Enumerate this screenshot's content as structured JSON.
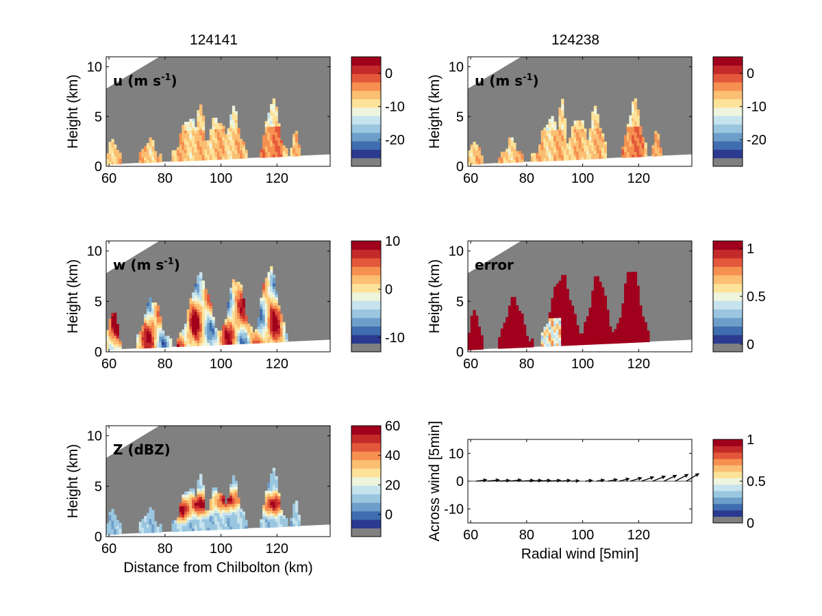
{
  "column_titles": [
    "124141",
    "124238"
  ],
  "labels": {
    "height": "Height (km)",
    "distance": "Distance from Chilbolton (km)",
    "radial": "Radial wind [5min]",
    "across": "Across wind [5min]"
  },
  "colorscale": [
    "#808080",
    "#2b3a8f",
    "#3f6db0",
    "#6d9ec9",
    "#9ac6df",
    "#c6e3ee",
    "#eef5dc",
    "#fde39a",
    "#fbbf73",
    "#f69051",
    "#e3573a",
    "#c42a2a",
    "#a0001c"
  ],
  "chart_data": [
    {
      "id": "u1",
      "type": "heatmap",
      "panel_label": "u (m s",
      "panel_label_sup": "-1",
      "panel_label_end": ")",
      "column": "124141",
      "xlim": [
        59,
        139
      ],
      "ylim": [
        0,
        11
      ],
      "xticks": [
        60,
        80,
        100,
        120
      ],
      "yticks": [
        0,
        5,
        10
      ],
      "ylabel": "Height (km)",
      "colorbar": {
        "ticks": [
          {
            "v": 0,
            "t": "0"
          },
          {
            "v": -10,
            "t": "-10"
          },
          {
            "v": -20,
            "t": "-20"
          }
        ],
        "range": [
          -28,
          5
        ]
      },
      "field": "u"
    },
    {
      "id": "u2",
      "type": "heatmap",
      "panel_label": "u (m s",
      "panel_label_sup": "-1",
      "panel_label_end": ")",
      "column": "124238",
      "xlim": [
        59,
        139
      ],
      "ylim": [
        0,
        11
      ],
      "xticks": [
        60,
        80,
        100,
        120
      ],
      "yticks": [
        0,
        5,
        10
      ],
      "ylabel": "Height (km)",
      "colorbar": {
        "ticks": [
          {
            "v": 0,
            "t": "0"
          },
          {
            "v": -10,
            "t": "-10"
          },
          {
            "v": -20,
            "t": "-20"
          }
        ],
        "range": [
          -28,
          5
        ]
      },
      "field": "u"
    },
    {
      "id": "w",
      "type": "heatmap",
      "panel_label": "w (m s",
      "panel_label_sup": "-1",
      "panel_label_end": ")",
      "column": "124141",
      "xlim": [
        59,
        139
      ],
      "ylim": [
        0,
        11
      ],
      "xticks": [
        60,
        80,
        100,
        120
      ],
      "yticks": [
        0,
        5,
        10
      ],
      "ylabel": "Height (km)",
      "colorbar": {
        "ticks": [
          {
            "v": 10,
            "t": "10"
          },
          {
            "v": 0,
            "t": "0"
          },
          {
            "v": -10,
            "t": "-10"
          }
        ],
        "range": [
          -13,
          10
        ]
      },
      "field": "w"
    },
    {
      "id": "err",
      "type": "heatmap",
      "panel_label": "error",
      "column": "124238",
      "xlim": [
        59,
        139
      ],
      "ylim": [
        0,
        11
      ],
      "xticks": [
        60,
        80,
        100,
        120
      ],
      "yticks": [
        0,
        5,
        10
      ],
      "ylabel": "Height (km)",
      "colorbar": {
        "ticks": [
          {
            "v": 1,
            "t": "1"
          },
          {
            "v": 0.5,
            "t": "0.5"
          },
          {
            "v": 0,
            "t": "0"
          }
        ],
        "range": [
          -0.08,
          1.08
        ]
      },
      "field": "err"
    },
    {
      "id": "z",
      "type": "heatmap",
      "panel_label": "Z (dBZ)",
      "column": "124141",
      "xlim": [
        59,
        139
      ],
      "ylim": [
        0,
        11
      ],
      "xticks": [
        60,
        80,
        100,
        120
      ],
      "yticks": [
        0,
        5,
        10
      ],
      "ylabel": "Height (km)",
      "xlabel": "Distance from Chilbolton (km)",
      "colorbar": {
        "ticks": [
          {
            "v": 60,
            "t": "60"
          },
          {
            "v": 40,
            "t": "40"
          },
          {
            "v": 20,
            "t": "20"
          },
          {
            "v": 0,
            "t": "0"
          }
        ],
        "range": [
          -15,
          60
        ]
      },
      "field": "z"
    },
    {
      "id": "q",
      "type": "scatter",
      "subtype": "quiver",
      "column": "124238",
      "xlim": [
        59,
        139
      ],
      "ylim": [
        -15,
        15
      ],
      "xticks": [
        60,
        80,
        100,
        120
      ],
      "yticks": [
        10,
        0,
        -10
      ],
      "xlabel": "Radial wind [5min]",
      "ylabel": "Across wind [5min]",
      "colorbar": {
        "ticks": [
          {
            "v": 1,
            "t": "1"
          },
          {
            "v": 0.5,
            "t": "0.5"
          },
          {
            "v": 0,
            "t": "0"
          }
        ],
        "range": [
          0,
          1
        ]
      },
      "x": [
        62,
        66,
        70,
        74,
        78,
        81,
        84,
        88,
        92,
        96,
        101,
        105,
        109,
        113,
        117,
        121,
        125,
        129,
        133,
        137
      ],
      "u": [
        2.5,
        2.8,
        2.6,
        2.7,
        3.0,
        2.9,
        3.0,
        2.7,
        2.4,
        1.8,
        1.6,
        1.8,
        2.2,
        2.4,
        2.7,
        2.9,
        3.0,
        3.0,
        3.1,
        3.0
      ],
      "v": [
        0.3,
        0.3,
        0.2,
        0.3,
        0.2,
        0.2,
        0.2,
        0.2,
        0.2,
        0.1,
        0.2,
        0.3,
        0.4,
        0.6,
        0.8,
        1.0,
        1.2,
        1.4,
        1.6,
        1.8
      ]
    }
  ]
}
